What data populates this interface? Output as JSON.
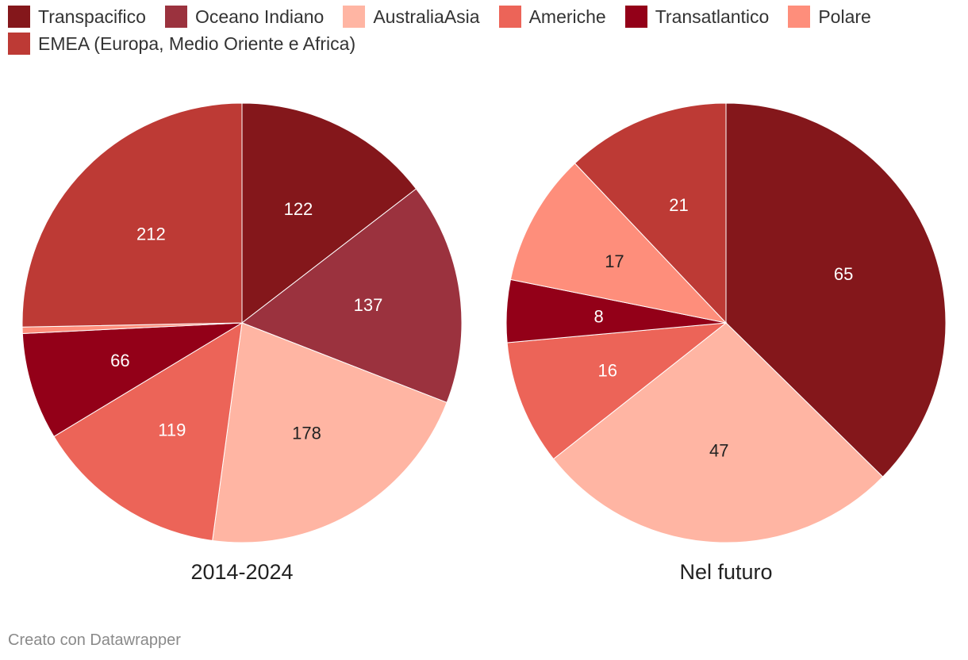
{
  "legend": [
    {
      "label": "Transpacifico",
      "color": "#84171b"
    },
    {
      "label": "Oceano Indiano",
      "color": "#9b323e"
    },
    {
      "label": "AustraliaAsia",
      "color": "#ffb5a3"
    },
    {
      "label": "Americhe",
      "color": "#ec6458"
    },
    {
      "label": "Transatlantico",
      "color": "#930018"
    },
    {
      "label": "Polare",
      "color": "#fe8e7b"
    },
    {
      "label": "EMEA (Europa, Medio Oriente e Africa)",
      "color": "#bd3a35"
    }
  ],
  "chart_data": [
    {
      "type": "pie",
      "title": "2014-2024",
      "categories": [
        "Transpacifico",
        "Oceano Indiano",
        "AustraliaAsia",
        "Americhe",
        "Transatlantico",
        "Polare",
        "EMEA (Europa, Medio Oriente e Africa)"
      ],
      "values": [
        122,
        137,
        178,
        119,
        66,
        4,
        212
      ],
      "labels": [
        "122",
        "137",
        "178",
        "119",
        "66",
        "",
        "212"
      ],
      "label_colors": [
        "#ffffff",
        "#ffffff",
        "#222222",
        "#ffffff",
        "#ffffff",
        "#222222",
        "#ffffff"
      ]
    },
    {
      "type": "pie",
      "title": "Nel futuro",
      "categories": [
        "Transpacifico",
        "AustraliaAsia",
        "Americhe",
        "Transatlantico",
        "Polare",
        "EMEA (Europa, Medio Oriente e Africa)"
      ],
      "values": [
        65,
        47,
        16,
        8,
        17,
        21
      ],
      "labels": [
        "65",
        "47",
        "16",
        "8",
        "17",
        "21"
      ],
      "label_colors": [
        "#ffffff",
        "#222222",
        "#ffffff",
        "#ffffff",
        "#222222",
        "#ffffff"
      ]
    }
  ],
  "footer": "Creato con Datawrapper"
}
